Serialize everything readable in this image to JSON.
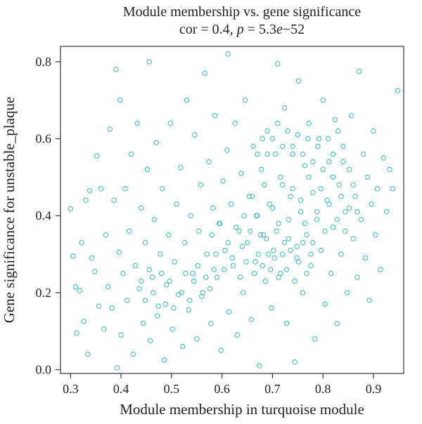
{
  "chart_data": {
    "type": "scatter",
    "title": "Module membership vs. gene significance",
    "subtitle_parts": [
      "cor = 0.4, ",
      "p",
      " = 5.3",
      "e",
      "−52"
    ],
    "xlabel": "Module membership in turquoise module",
    "ylabel": "Gene significance for unstable_plaque",
    "xlim": [
      0.28,
      0.96
    ],
    "ylim": [
      -0.01,
      0.84
    ],
    "x_ticks": [
      0.3,
      0.4,
      0.5,
      0.6,
      0.7,
      0.8,
      0.9
    ],
    "x_tick_labels": [
      "0.3",
      "0.4",
      "0.5",
      "0.6",
      "0.7",
      "0.8",
      "0.9"
    ],
    "y_ticks": [
      0.0,
      0.2,
      0.4,
      0.6,
      0.8
    ],
    "y_tick_labels": [
      "0.0",
      "0.2",
      "0.4",
      "0.6",
      "0.8"
    ],
    "grid": false,
    "point_color": "#4bbdbd",
    "points": [
      [
        0.3,
        0.418
      ],
      [
        0.305,
        0.295
      ],
      [
        0.31,
        0.215
      ],
      [
        0.312,
        0.095
      ],
      [
        0.318,
        0.205
      ],
      [
        0.322,
        0.33
      ],
      [
        0.326,
        0.125
      ],
      [
        0.33,
        0.44
      ],
      [
        0.334,
        0.04
      ],
      [
        0.338,
        0.465
      ],
      [
        0.342,
        0.29
      ],
      [
        0.348,
        0.255
      ],
      [
        0.352,
        0.555
      ],
      [
        0.356,
        0.165
      ],
      [
        0.36,
        0.47
      ],
      [
        0.366,
        0.105
      ],
      [
        0.37,
        0.35
      ],
      [
        0.374,
        0.215
      ],
      [
        0.378,
        0.625
      ],
      [
        0.382,
        0.16
      ],
      [
        0.386,
        0.44
      ],
      [
        0.39,
        0.78
      ],
      [
        0.392,
        0.005
      ],
      [
        0.396,
        0.305
      ],
      [
        0.398,
        0.7
      ],
      [
        0.4,
        0.09
      ],
      [
        0.404,
        0.25
      ],
      [
        0.408,
        0.47
      ],
      [
        0.412,
        0.18
      ],
      [
        0.416,
        0.36
      ],
      [
        0.42,
        0.56
      ],
      [
        0.424,
        0.04
      ],
      [
        0.428,
        0.27
      ],
      [
        0.432,
        0.64
      ],
      [
        0.436,
        0.21
      ],
      [
        0.44,
        0.42
      ],
      [
        0.444,
        0.12
      ],
      [
        0.448,
        0.33
      ],
      [
        0.452,
        0.52
      ],
      [
        0.456,
        0.8
      ],
      [
        0.458,
        0.075
      ],
      [
        0.462,
        0.24
      ],
      [
        0.466,
        0.39
      ],
      [
        0.47,
        0.59
      ],
      [
        0.474,
        0.165
      ],
      [
        0.478,
        0.3
      ],
      [
        0.482,
        0.47
      ],
      [
        0.486,
        0.025
      ],
      [
        0.49,
        0.22
      ],
      [
        0.494,
        0.35
      ],
      [
        0.498,
        0.64
      ],
      [
        0.502,
        0.105
      ],
      [
        0.506,
        0.28
      ],
      [
        0.51,
        0.43
      ],
      [
        0.514,
        0.195
      ],
      [
        0.518,
        0.525
      ],
      [
        0.522,
        0.06
      ],
      [
        0.526,
        0.33
      ],
      [
        0.53,
        0.7
      ],
      [
        0.534,
        0.155
      ],
      [
        0.538,
        0.4
      ],
      [
        0.542,
        0.25
      ],
      [
        0.546,
        0.61
      ],
      [
        0.55,
        0.08
      ],
      [
        0.554,
        0.36
      ],
      [
        0.558,
        0.48
      ],
      [
        0.562,
        0.2
      ],
      [
        0.566,
        0.77
      ],
      [
        0.57,
        0.3
      ],
      [
        0.574,
        0.54
      ],
      [
        0.578,
        0.12
      ],
      [
        0.582,
        0.42
      ],
      [
        0.586,
        0.66
      ],
      [
        0.59,
        0.24
      ],
      [
        0.594,
        0.38
      ],
      [
        0.598,
        0.05
      ],
      [
        0.602,
        0.49
      ],
      [
        0.606,
        0.31
      ],
      [
        0.61,
        0.57
      ],
      [
        0.612,
        0.82
      ],
      [
        0.614,
        0.15
      ],
      [
        0.618,
        0.43
      ],
      [
        0.622,
        0.27
      ],
      [
        0.626,
        0.64
      ],
      [
        0.63,
        0.09
      ],
      [
        0.634,
        0.36
      ],
      [
        0.638,
        0.51
      ],
      [
        0.642,
        0.2
      ],
      [
        0.646,
        0.7
      ],
      [
        0.65,
        0.33
      ],
      [
        0.654,
        0.45
      ],
      [
        0.658,
        0.13
      ],
      [
        0.662,
        0.58
      ],
      [
        0.666,
        0.28
      ],
      [
        0.67,
        0.4
      ],
      [
        0.674,
        0.01
      ],
      [
        0.678,
        0.52
      ],
      [
        0.682,
        0.35
      ],
      [
        0.686,
        0.23
      ],
      [
        0.69,
        0.62
      ],
      [
        0.694,
        0.43
      ],
      [
        0.698,
        0.16
      ],
      [
        0.702,
        0.31
      ],
      [
        0.706,
        0.56
      ],
      [
        0.71,
        0.795
      ],
      [
        0.712,
        0.38
      ],
      [
        0.716,
        0.25
      ],
      [
        0.72,
        0.48
      ],
      [
        0.724,
        0.68
      ],
      [
        0.728,
        0.12
      ],
      [
        0.732,
        0.34
      ],
      [
        0.736,
        0.45
      ],
      [
        0.74,
        0.58
      ],
      [
        0.744,
        0.02
      ],
      [
        0.748,
        0.29
      ],
      [
        0.752,
        0.75
      ],
      [
        0.756,
        0.41
      ],
      [
        0.76,
        0.2
      ],
      [
        0.764,
        0.53
      ],
      [
        0.768,
        0.35
      ],
      [
        0.772,
        0.64
      ],
      [
        0.776,
        0.27
      ],
      [
        0.78,
        0.46
      ],
      [
        0.784,
        0.08
      ],
      [
        0.788,
        0.39
      ],
      [
        0.792,
        0.6
      ],
      [
        0.796,
        0.31
      ],
      [
        0.8,
        0.7
      ],
      [
        0.804,
        0.17
      ],
      [
        0.808,
        0.44
      ],
      [
        0.812,
        0.54
      ],
      [
        0.816,
        0.25
      ],
      [
        0.82,
        0.37
      ],
      [
        0.824,
        0.65
      ],
      [
        0.828,
        0.12
      ],
      [
        0.832,
        0.48
      ],
      [
        0.836,
        0.3
      ],
      [
        0.84,
        0.58
      ],
      [
        0.844,
        0.41
      ],
      [
        0.848,
        0.2
      ],
      [
        0.852,
        0.52
      ],
      [
        0.856,
        0.66
      ],
      [
        0.86,
        0.34
      ],
      [
        0.864,
        0.45
      ],
      [
        0.868,
        0.24
      ],
      [
        0.872,
        0.775
      ],
      [
        0.876,
        0.39
      ],
      [
        0.88,
        0.56
      ],
      [
        0.884,
        0.29
      ],
      [
        0.888,
        0.5
      ],
      [
        0.892,
        0.18
      ],
      [
        0.896,
        0.43
      ],
      [
        0.9,
        0.62
      ],
      [
        0.904,
        0.35
      ],
      [
        0.908,
        0.47
      ],
      [
        0.914,
        0.26
      ],
      [
        0.92,
        0.55
      ],
      [
        0.926,
        0.41
      ],
      [
        0.932,
        0.52
      ],
      [
        0.938,
        0.47
      ],
      [
        0.948,
        0.725
      ],
      [
        0.66,
        0.45
      ],
      [
        0.668,
        0.4
      ],
      [
        0.676,
        0.35
      ],
      [
        0.684,
        0.48
      ],
      [
        0.692,
        0.3
      ],
      [
        0.7,
        0.42
      ],
      [
        0.708,
        0.36
      ],
      [
        0.716,
        0.5
      ],
      [
        0.724,
        0.33
      ],
      [
        0.732,
        0.39
      ],
      [
        0.74,
        0.47
      ],
      [
        0.748,
        0.32
      ],
      [
        0.756,
        0.44
      ],
      [
        0.764,
        0.38
      ],
      [
        0.772,
        0.5
      ],
      [
        0.78,
        0.33
      ],
      [
        0.788,
        0.41
      ],
      [
        0.796,
        0.47
      ],
      [
        0.804,
        0.36
      ],
      [
        0.812,
        0.43
      ],
      [
        0.82,
        0.5
      ],
      [
        0.828,
        0.39
      ],
      [
        0.836,
        0.45
      ],
      [
        0.844,
        0.36
      ],
      [
        0.852,
        0.42
      ],
      [
        0.86,
        0.48
      ],
      [
        0.868,
        0.41
      ],
      [
        0.64,
        0.32
      ],
      [
        0.648,
        0.28
      ],
      [
        0.656,
        0.36
      ],
      [
        0.664,
        0.25
      ],
      [
        0.672,
        0.3
      ],
      [
        0.68,
        0.27
      ],
      [
        0.688,
        0.34
      ],
      [
        0.696,
        0.26
      ],
      [
        0.704,
        0.29
      ],
      [
        0.712,
        0.24
      ],
      [
        0.72,
        0.3
      ],
      [
        0.728,
        0.26
      ],
      [
        0.736,
        0.31
      ],
      [
        0.744,
        0.23
      ],
      [
        0.752,
        0.28
      ],
      [
        0.76,
        0.33
      ],
      [
        0.768,
        0.25
      ],
      [
        0.776,
        0.3
      ],
      [
        0.58,
        0.35
      ],
      [
        0.588,
        0.3
      ],
      [
        0.596,
        0.38
      ],
      [
        0.604,
        0.26
      ],
      [
        0.612,
        0.33
      ],
      [
        0.62,
        0.29
      ],
      [
        0.628,
        0.37
      ],
      [
        0.636,
        0.24
      ],
      [
        0.644,
        0.4
      ],
      [
        0.52,
        0.2
      ],
      [
        0.528,
        0.25
      ],
      [
        0.536,
        0.18
      ],
      [
        0.544,
        0.23
      ],
      [
        0.552,
        0.27
      ],
      [
        0.56,
        0.19
      ],
      [
        0.568,
        0.24
      ],
      [
        0.576,
        0.21
      ],
      [
        0.584,
        0.26
      ],
      [
        0.44,
        0.23
      ],
      [
        0.448,
        0.18
      ],
      [
        0.456,
        0.26
      ],
      [
        0.464,
        0.2
      ],
      [
        0.472,
        0.14
      ],
      [
        0.48,
        0.25
      ],
      [
        0.488,
        0.17
      ],
      [
        0.496,
        0.23
      ],
      [
        0.504,
        0.16
      ],
      [
        0.76,
        0.56
      ],
      [
        0.77,
        0.6
      ],
      [
        0.78,
        0.54
      ],
      [
        0.79,
        0.58
      ],
      [
        0.8,
        0.52
      ],
      [
        0.81,
        0.6
      ],
      [
        0.82,
        0.56
      ],
      [
        0.83,
        0.62
      ],
      [
        0.84,
        0.54
      ],
      [
        0.7,
        0.6
      ],
      [
        0.71,
        0.64
      ],
      [
        0.72,
        0.58
      ],
      [
        0.73,
        0.62
      ],
      [
        0.74,
        0.56
      ],
      [
        0.75,
        0.61
      ],
      [
        0.69,
        0.56
      ],
      [
        0.68,
        0.6
      ],
      [
        0.67,
        0.56
      ]
    ]
  }
}
